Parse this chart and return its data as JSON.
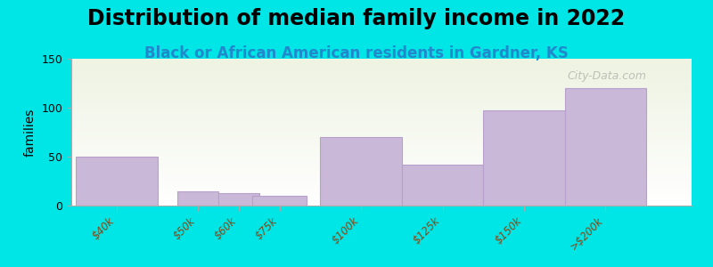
{
  "title": "Distribution of median family income in 2022",
  "subtitle": "Black or African American residents in Gardner, KS",
  "ylabel": "families",
  "categories": [
    "$40k",
    "$50k",
    "$60k",
    "$75k",
    "$100k",
    "$125k",
    "$150k",
    ">$200k"
  ],
  "values": [
    50,
    15,
    13,
    10,
    70,
    42,
    97,
    120
  ],
  "bar_color": "#c9b8d8",
  "bar_edge_color": "#b8a0cc",
  "ylim": [
    0,
    150
  ],
  "yticks": [
    0,
    50,
    100,
    150
  ],
  "background_color": "#00e5e5",
  "plot_bg_gradient_top": "#eef3e2",
  "plot_bg_gradient_bottom": "#ffffff",
  "title_fontsize": 17,
  "subtitle_fontsize": 12,
  "subtitle_color": "#2288cc",
  "watermark": "City-Data.com",
  "bar_widths": [
    1.8,
    0.9,
    0.9,
    1.2,
    1.8,
    1.8,
    1.8,
    1.8
  ],
  "bar_positions": [
    1.0,
    2.8,
    3.7,
    4.6,
    6.4,
    8.2,
    10.0,
    11.8
  ],
  "xlim": [
    0,
    13.7
  ]
}
